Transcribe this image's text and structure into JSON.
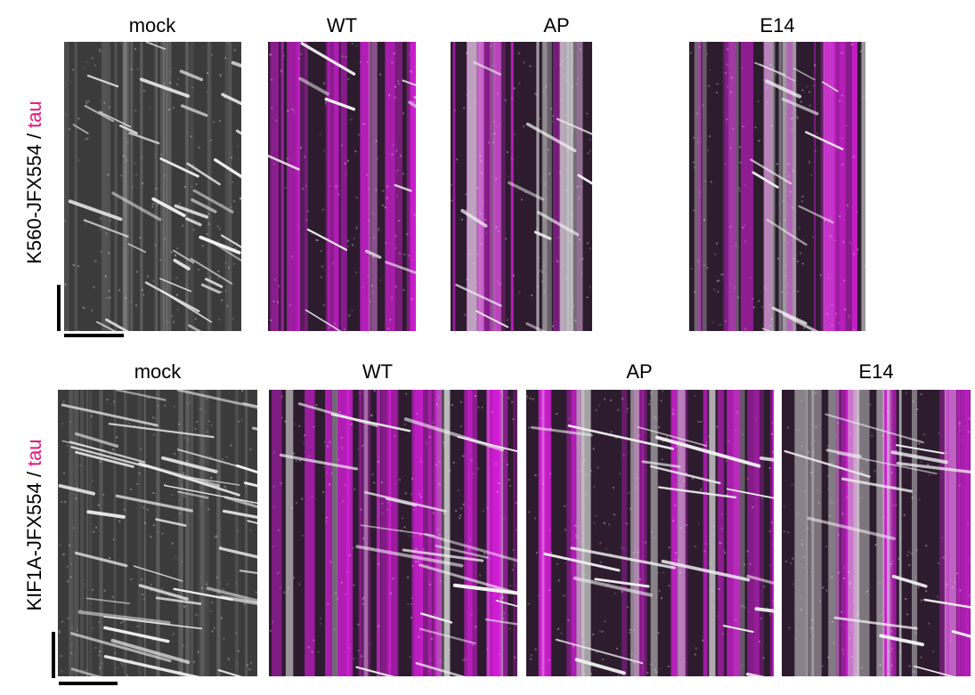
{
  "rows": [
    {
      "label": "K560-JFX554 /",
      "label_highlight": "tau",
      "panels": [
        "mock",
        "WT",
        "AP",
        "E14"
      ]
    },
    {
      "label": "KIF1A-JFX554 /",
      "label_highlight": "tau",
      "panels": [
        "mock",
        "WT",
        "AP",
        "E14"
      ]
    }
  ]
}
